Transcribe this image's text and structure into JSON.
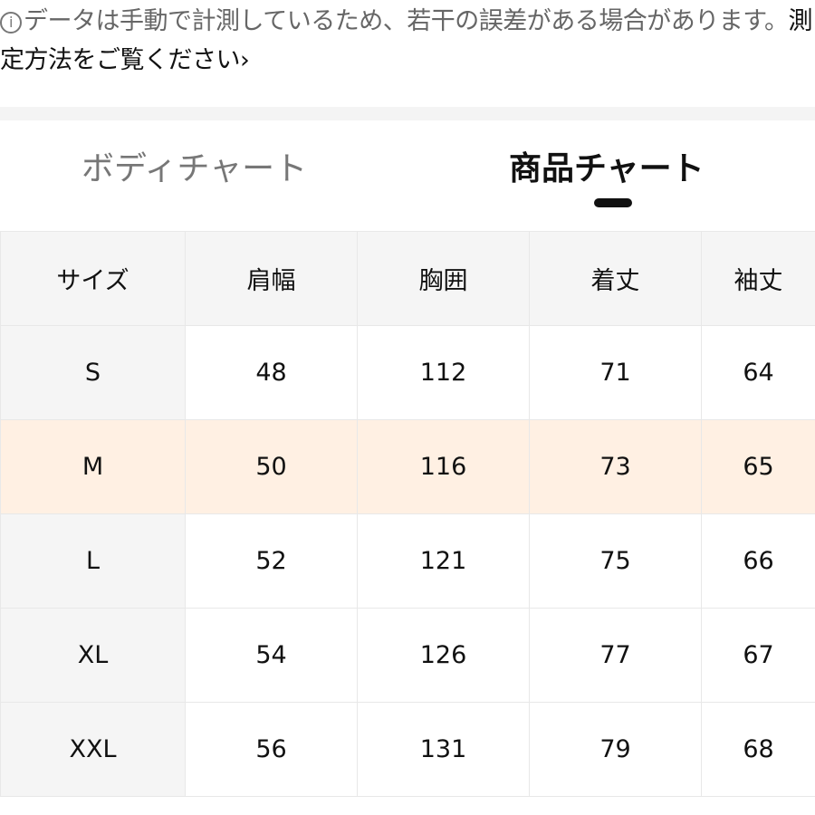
{
  "notice": {
    "text": "データは手動で計測しているため、若干の誤差がある場合があります。",
    "link": "測定方法をご覧ください",
    "chevron": "›",
    "icon": "i"
  },
  "tabs": [
    {
      "label": "ボディチャート",
      "active": false
    },
    {
      "label": "商品チャート",
      "active": true
    }
  ],
  "table": {
    "headers": [
      "サイズ",
      "肩幅",
      "胸囲",
      "着丈",
      "袖丈"
    ],
    "rows": [
      [
        "S",
        "48",
        "112",
        "71",
        "64"
      ],
      [
        "M",
        "50",
        "116",
        "73",
        "65"
      ],
      [
        "L",
        "52",
        "121",
        "75",
        "66"
      ],
      [
        "XL",
        "54",
        "126",
        "77",
        "67"
      ],
      [
        "XXL",
        "56",
        "131",
        "79",
        "68"
      ]
    ],
    "highlighted_row": "M",
    "highlight_color": "#fff0e3"
  }
}
